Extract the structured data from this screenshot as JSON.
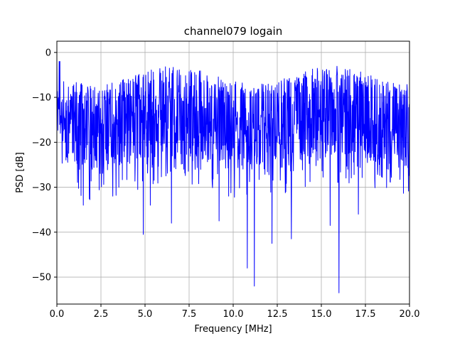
{
  "chart_data": {
    "type": "line",
    "title": "channel079 logain",
    "xlabel": "Frequency [MHz]",
    "ylabel": "PSD [dB]",
    "xlim": [
      0,
      20
    ],
    "ylim": [
      -56,
      2.5
    ],
    "grid": true,
    "line_color": "#0000ff",
    "x_ticks": [
      0,
      2.5,
      5,
      7.5,
      10,
      12.5,
      15,
      17.5,
      20
    ],
    "x_tick_labels": [
      "0.0",
      "2.5",
      "5.0",
      "7.5",
      "10.0",
      "12.5",
      "15.0",
      "17.5",
      "20.0"
    ],
    "y_ticks": [
      0,
      -10,
      -20,
      -30,
      -40,
      -50
    ],
    "y_tick_labels": [
      "0",
      "−10",
      "−20",
      "−30",
      "−40",
      "−50"
    ],
    "series": [
      {
        "x": [
          0,
          0.1,
          0.2,
          0.4,
          0.6,
          0.8,
          1.0,
          1.2,
          1.4,
          1.5,
          1.8,
          2.0,
          2.2,
          2.5,
          2.8,
          3.0,
          3.4,
          3.8,
          4.0,
          4.2,
          4.5,
          4.9,
          5.1,
          5.3,
          5.6,
          6.0,
          6.3,
          6.5,
          6.8,
          7.0,
          7.2,
          7.4,
          7.8,
          8.2,
          8.5,
          8.8,
          9.2,
          9.6,
          10.0,
          10.3,
          10.6,
          10.8,
          11.0,
          11.2,
          11.5,
          11.9,
          12.2,
          12.5,
          12.8,
          13.0,
          13.3,
          13.6,
          14.0,
          14.4,
          14.8,
          15.2,
          15.5,
          15.8,
          16.0,
          16.2,
          16.5,
          16.8,
          17.1,
          17.4,
          17.8,
          18.1,
          18.4,
          18.8,
          19.2,
          19.6,
          20.0
        ],
        "y": [
          -2,
          -12,
          -18,
          -14,
          -22,
          -10,
          -16,
          -20,
          -8,
          -34,
          -15,
          -26,
          -12,
          -18,
          -24,
          -10,
          -16,
          -22,
          -14,
          -20,
          -12,
          -40.5,
          -18,
          -34,
          -14,
          -22,
          -16,
          -38,
          -20,
          -12,
          -26,
          -18,
          -14,
          -22,
          -16,
          -28,
          -37.5,
          -20,
          -14,
          -22,
          -18,
          -48,
          -16,
          -52,
          -22,
          -18,
          -42.5,
          -20,
          -16,
          -24,
          -41.5,
          -18,
          -22,
          -16,
          -24,
          -20,
          -38.5,
          -22,
          -53.5,
          -18,
          -26,
          -20,
          -36,
          -18,
          -24,
          -16,
          -22,
          -26,
          -18,
          -24,
          -16
        ]
      }
    ]
  }
}
